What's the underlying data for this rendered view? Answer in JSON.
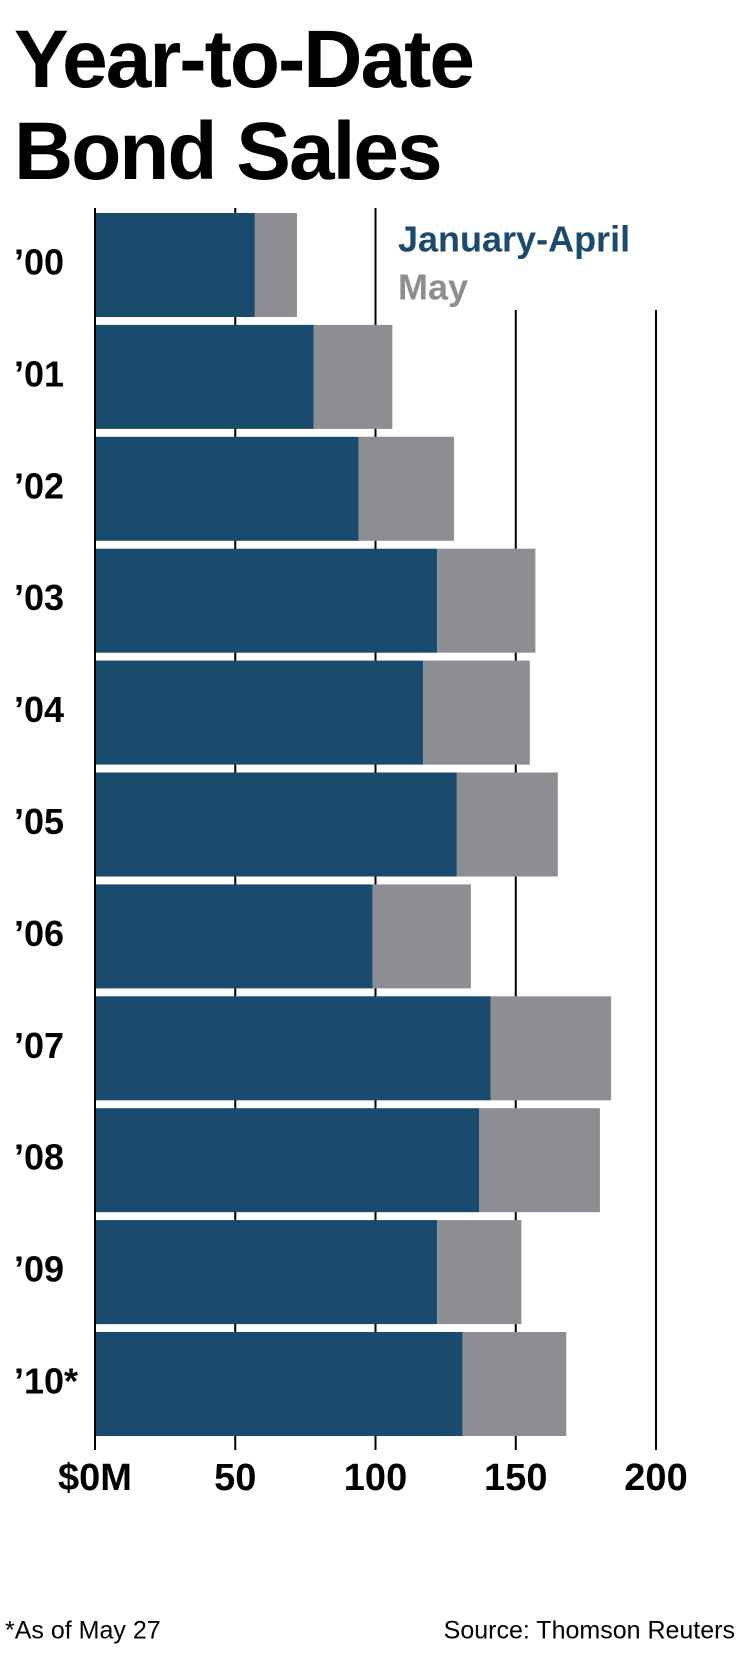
{
  "chart_data": {
    "type": "stacked-bar-horizontal",
    "title": "Year-to-Date Bond Sales",
    "categories": [
      "’00",
      "’01",
      "’02",
      "’03",
      "’04",
      "’05",
      "’06",
      "’07",
      "’08",
      "’09",
      "’10*"
    ],
    "series": [
      {
        "name": "January-April",
        "color": "#1a4a6e",
        "values": [
          57,
          78,
          94,
          122,
          117,
          129,
          99,
          141,
          137,
          122,
          131
        ]
      },
      {
        "name": "May",
        "color": "#8c8e91",
        "values": [
          15,
          28,
          34,
          35,
          38,
          36,
          35,
          43,
          43,
          30,
          37
        ]
      }
    ],
    "xlim": [
      0,
      200
    ],
    "xticks": [
      {
        "value": 0,
        "label": "$0M"
      },
      50,
      100,
      150,
      200
    ],
    "grid": true,
    "footnote": "*As of May 27",
    "source": "Source: Thomson Reuters"
  }
}
